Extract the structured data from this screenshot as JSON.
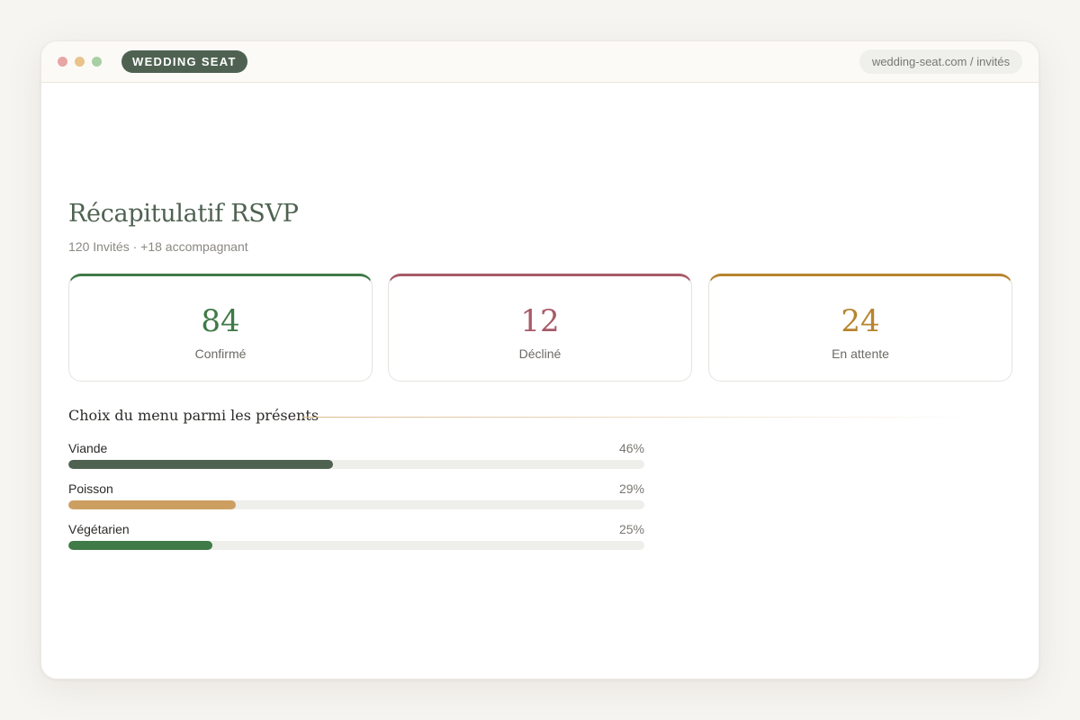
{
  "window": {
    "brand": "WEDDING SEAT",
    "url": "wedding-seat.com / invités"
  },
  "summary": {
    "title": "Récapitulatif RSVP",
    "subtitle": "120 Invités · +18 accompagnant",
    "cards": [
      {
        "value": "84",
        "label": "Confirmé",
        "color": "#3f7a47"
      },
      {
        "value": "12",
        "label": "Décliné",
        "color": "#a65a68"
      },
      {
        "value": "24",
        "label": "En attente",
        "color": "#b7842f"
      }
    ]
  },
  "menu": {
    "title": "Choix du menu parmi les présents",
    "items": [
      {
        "label": "Viande",
        "percent_text": "46%",
        "percent": 46,
        "color": "#4f6251"
      },
      {
        "label": "Poisson",
        "percent_text": "29%",
        "percent": 29,
        "color": "#cc9f61"
      },
      {
        "label": "Végétarien",
        "percent_text": "25%",
        "percent": 25,
        "color": "#3f7a47"
      }
    ]
  }
}
